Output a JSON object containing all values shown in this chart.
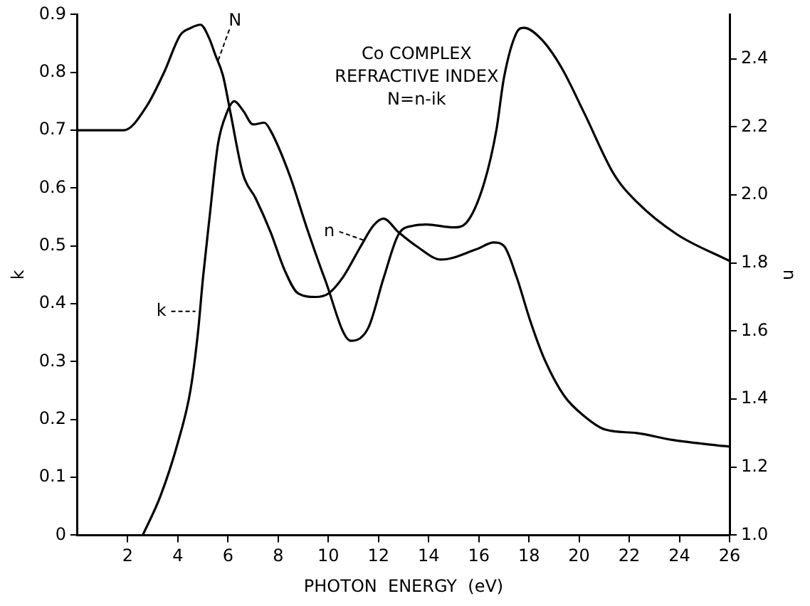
{
  "chart_data": {
    "type": "line",
    "xlabel": "PHOTON  ENERGY  (eV)",
    "ylabel": "k",
    "y2label": "n",
    "xlim": [
      0,
      26
    ],
    "xticks": [
      2,
      4,
      6,
      8,
      10,
      12,
      14,
      16,
      18,
      20,
      22,
      24,
      26
    ],
    "ylim": [
      0,
      0.9
    ],
    "yticks": [
      0,
      0.1,
      0.2,
      0.3,
      0.4,
      0.5,
      0.6,
      0.7,
      0.8,
      0.9
    ],
    "y2lim": [
      1.0,
      2.53
    ],
    "y2ticks": [
      {
        "value": 1.0,
        "label": "1.0"
      },
      1.2,
      1.4,
      1.6,
      1.8,
      {
        "value": 2.0,
        "label": "2.0"
      },
      2.2,
      2.4
    ],
    "grid": false,
    "legend": false,
    "marker": "none",
    "line_style": "solid",
    "annotations": [
      "Co COMPLEX",
      "REFRACTIVE INDEX",
      "N=n-ik",
      {
        "text": "N",
        "x": 5.6,
        "y": 0.82
      },
      {
        "text": "n",
        "x": 11.4,
        "y": 0.51
      },
      {
        "text": "k",
        "x": 4.7,
        "y": 0.387
      }
    ],
    "series": [
      {
        "color": "#000000",
        "x": [
          2.6,
          3.3,
          4.0,
          4.5,
          4.8,
          5.0,
          5.25,
          5.6,
          5.95,
          6.25,
          6.6,
          7.0,
          7.45,
          7.7,
          8.45,
          9.15,
          9.85,
          10.9,
          11.6,
          12.2,
          12.8,
          13.4,
          13.9,
          15.0,
          15.5,
          16.2,
          16.7,
          17.0,
          17.5,
          17.8,
          18.5,
          19.3,
          20.2,
          21.4,
          22.3,
          23.9,
          26.0
        ],
        "values": [
          0,
          0.067,
          0.16,
          0.25,
          0.35,
          0.444,
          0.544,
          0.676,
          0.73,
          0.75,
          0.734,
          0.71,
          0.713,
          0.699,
          0.623,
          0.53,
          0.444,
          0.336,
          0.359,
          0.444,
          0.52,
          0.535,
          0.537,
          0.532,
          0.54,
          0.607,
          0.7,
          0.79,
          0.868,
          0.877,
          0.857,
          0.808,
          0.73,
          0.623,
          0.576,
          0.52,
          0.474
        ]
      },
      {
        "color": "#000000",
        "axis": "y2",
        "x": [
          0,
          1.85,
          2.75,
          3.45,
          4.1,
          4.5,
          4.9,
          5.25,
          5.5,
          5.8,
          6.1,
          6.6,
          7.1,
          7.7,
          8.25,
          8.8,
          9.5,
          10.0,
          10.6,
          11.3,
          11.8,
          12.2,
          12.8,
          13.5,
          14.5,
          15.9,
          16.6,
          17.0,
          17.5,
          18.05,
          18.6,
          19.4,
          20.2,
          21.05,
          22.3,
          23.7,
          26.0
        ],
        "values": [
          2.19,
          2.19,
          2.26,
          2.36,
          2.47,
          2.49,
          2.5,
          2.46,
          2.41,
          2.35,
          2.24,
          2.06,
          1.99,
          1.89,
          1.78,
          1.71,
          1.7,
          1.71,
          1.76,
          1.85,
          1.91,
          1.93,
          1.89,
          1.85,
          1.81,
          1.84,
          1.86,
          1.85,
          1.76,
          1.63,
          1.52,
          1.41,
          1.35,
          1.31,
          1.3,
          1.28,
          1.26
        ]
      }
    ]
  }
}
